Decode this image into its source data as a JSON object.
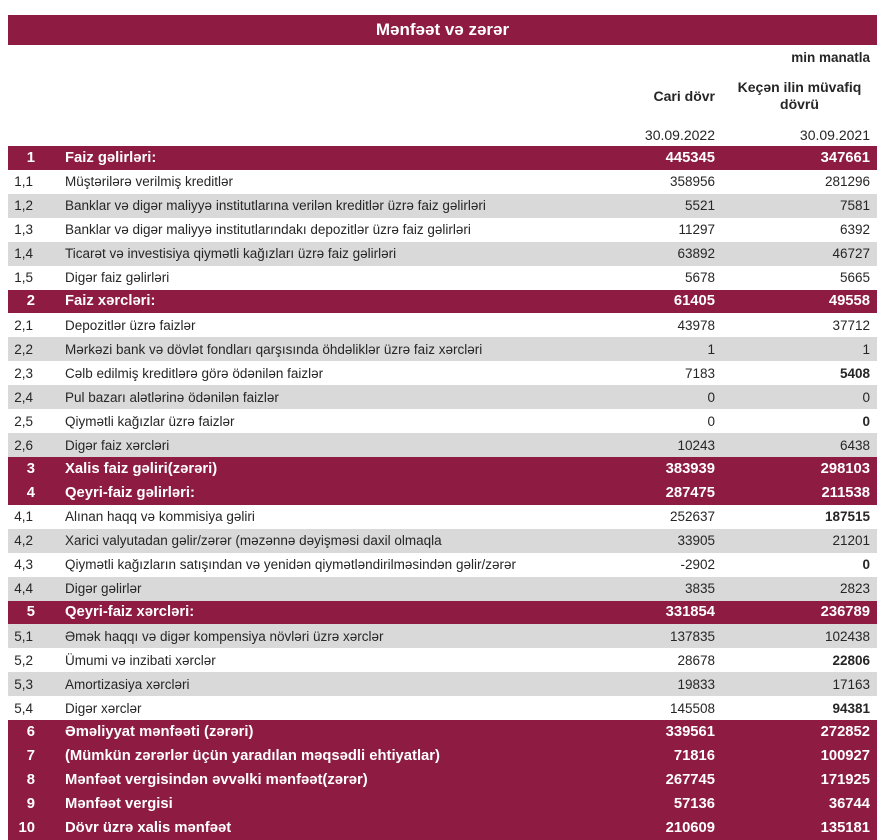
{
  "title": "Mənfəət və zərər",
  "unit_note": "min manatla",
  "columns": {
    "current": {
      "label": "Cari dövr",
      "date": "30.09.2022"
    },
    "previous": {
      "label": "Keçən ilin müvafiq dövrü",
      "date": "30.09.2021"
    }
  },
  "colors": {
    "header_maroon": "#8E1B42",
    "row_gray": "#D9D9D9",
    "text_dark": "#262626",
    "header_text": "#FFFFFF"
  },
  "rows": [
    {
      "num": "1",
      "label": "Faiz gəlirləri:",
      "current": "445345",
      "previous": "347661",
      "kind": "section"
    },
    {
      "num": "1,1",
      "label": "Müştərilərə verilmiş kreditlər",
      "current": "358956",
      "previous": "281296",
      "kind": "item",
      "shade": "white"
    },
    {
      "num": "1,2",
      "label": "Banklar və digər maliyyə institutlarına verilən kreditlər üzrə faiz gəlirləri",
      "current": "5521",
      "previous": "7581",
      "kind": "item",
      "shade": "gray"
    },
    {
      "num": "1,3",
      "label": "Banklar və digər maliyyə institutlarındakı depozitlər üzrə faiz gəlirləri",
      "current": "11297",
      "previous": "6392",
      "kind": "item",
      "shade": "white"
    },
    {
      "num": "1,4",
      "label": "Ticarət və investisiya qiymətli kağızları üzrə faiz gəlirləri",
      "current": "63892",
      "previous": "46727",
      "kind": "item",
      "shade": "gray"
    },
    {
      "num": "1,5",
      "label": "Digər faiz gəlirləri",
      "current": "5678",
      "previous": "5665",
      "kind": "item",
      "shade": "white"
    },
    {
      "num": "2",
      "label": "Faiz xərcləri:",
      "current": "61405",
      "previous": "49558",
      "kind": "section"
    },
    {
      "num": "2,1",
      "label": "Depozitlər üzrə faizlər",
      "current": "43978",
      "previous": "37712",
      "kind": "item",
      "shade": "white"
    },
    {
      "num": "2,2",
      "label": "Mərkəzi bank və dövlət fondları qarşısında öhdəliklər üzrə faiz xərcləri",
      "current": "1",
      "previous": "1",
      "kind": "item",
      "shade": "gray"
    },
    {
      "num": "2,3",
      "label": "Cəlb edilmiş kreditlərə görə ödənilən faizlər",
      "current": "7183",
      "previous": "5408",
      "kind": "item",
      "shade": "white",
      "bold_previous": true
    },
    {
      "num": "2,4",
      "label": "Pul bazarı alətlərinə ödənilən faizlər",
      "current": "0",
      "previous": "0",
      "kind": "item",
      "shade": "gray"
    },
    {
      "num": "2,5",
      "label": "Qiymətli kağızlar üzrə faizlər",
      "current": "0",
      "previous": "0",
      "kind": "item",
      "shade": "white",
      "bold_previous": true
    },
    {
      "num": "2,6",
      "label": "Digər faiz xərcləri",
      "current": "10243",
      "previous": "6438",
      "kind": "item",
      "shade": "gray"
    },
    {
      "num": "3",
      "label": "Xalis faiz gəliri(zərəri)",
      "current": "383939",
      "previous": "298103",
      "kind": "section"
    },
    {
      "num": "4",
      "label": "Qeyri-faiz gəlirləri:",
      "current": "287475",
      "previous": "211538",
      "kind": "section"
    },
    {
      "num": "4,1",
      "label": "Alınan haqq və kommisiya gəliri",
      "current": "252637",
      "previous": "187515",
      "kind": "item",
      "shade": "white",
      "bold_previous": true
    },
    {
      "num": "4,2",
      "label": "Xarici valyutadan gəlir/zərər (məzənnə dəyişməsi daxil olmaqla",
      "current": "33905",
      "previous": "21201",
      "kind": "item",
      "shade": "gray"
    },
    {
      "num": "4,3",
      "label": "Qiymətli kağızların satışından və yenidən qiymətləndirilməsindən gəlir/zərər",
      "current": "-2902",
      "previous": "0",
      "kind": "item",
      "shade": "white",
      "bold_previous": true
    },
    {
      "num": "4,4",
      "label": "Digər gəlirlər",
      "current": "3835",
      "previous": "2823",
      "kind": "item",
      "shade": "gray"
    },
    {
      "num": "5",
      "label": "Qeyri-faiz xərcləri:",
      "current": "331854",
      "previous": "236789",
      "kind": "section"
    },
    {
      "num": "5,1",
      "label": "Əmək haqqı və digər kompensiya növləri üzrə xərclər",
      "current": "137835",
      "previous": "102438",
      "kind": "item",
      "shade": "gray"
    },
    {
      "num": "5,2",
      "label": "Ümumi və inzibati xərclər",
      "current": "28678",
      "previous": "22806",
      "kind": "item",
      "shade": "white",
      "bold_previous": true
    },
    {
      "num": "5,3",
      "label": "Amortizasiya xərcləri",
      "current": "19833",
      "previous": "17163",
      "kind": "item",
      "shade": "gray"
    },
    {
      "num": "5,4",
      "label": "Digər xərclər",
      "current": "145508",
      "previous": "94381",
      "kind": "item",
      "shade": "white",
      "bold_previous": true
    },
    {
      "num": "6",
      "label": "Əməliyyat mənfəəti (zərəri)",
      "current": "339561",
      "previous": "272852",
      "kind": "section"
    },
    {
      "num": "7",
      "label": "(Mümkün zərərlər üçün yaradılan məqsədli ehtiyatlar)",
      "current": "71816",
      "previous": "100927",
      "kind": "section"
    },
    {
      "num": "8",
      "label": "Mənfəət vergisindən əvvəlki mənfəət(zərər)",
      "current": "267745",
      "previous": "171925",
      "kind": "section"
    },
    {
      "num": "9",
      "label": "Mənfəət vergisi",
      "current": "57136",
      "previous": "36744",
      "kind": "section"
    },
    {
      "num": "10",
      "label": "Dövr üzrə xalis mənfəət",
      "current": "210609",
      "previous": "135181",
      "kind": "section"
    }
  ]
}
